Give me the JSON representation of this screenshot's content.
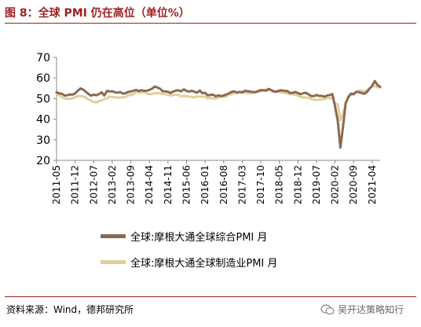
{
  "header": {
    "title": "图 8：全球 PMI 仍在高位（单位%）"
  },
  "footer": {
    "source": "资料来源：Wind，德邦研究所",
    "watermark": "吴开达策略知行"
  },
  "chart_data": {
    "type": "line",
    "title": "",
    "xlabel": "",
    "ylabel": "",
    "ylim": [
      20,
      70
    ],
    "yticks": [
      20,
      30,
      40,
      50,
      60,
      70
    ],
    "x_tick_labels": [
      "2011-05",
      "2011-12",
      "2012-07",
      "2013-02",
      "2013-09",
      "2014-04",
      "2014-11",
      "2015-06",
      "2016-01",
      "2016-08",
      "2017-03",
      "2017-10",
      "2018-05",
      "2018-12",
      "2019-07",
      "2020-02",
      "2020-09",
      "2021-04"
    ],
    "x_start": "2011-05",
    "x_end": "2021-07",
    "grid": false,
    "legend_position": "bottom",
    "colors": {
      "composite": "#8b6a50",
      "manufacturing": "#e0cf9c"
    },
    "series": [
      {
        "name": "全球:摩根大通全球综合PMI 月",
        "color": "#8b6a50",
        "points": [
          [
            "2011-05",
            53.0
          ],
          [
            "2011-06",
            52.6
          ],
          [
            "2011-07",
            52.3
          ],
          [
            "2011-08",
            51.5
          ],
          [
            "2011-09",
            51.6
          ],
          [
            "2011-10",
            52.0
          ],
          [
            "2011-11",
            51.9
          ],
          [
            "2011-12",
            52.5
          ],
          [
            "2012-01",
            53.8
          ],
          [
            "2012-02",
            54.9
          ],
          [
            "2012-03",
            54.4
          ],
          [
            "2012-04",
            53.3
          ],
          [
            "2012-05",
            52.3
          ],
          [
            "2012-06",
            51.4
          ],
          [
            "2012-07",
            51.9
          ],
          [
            "2012-08",
            51.6
          ],
          [
            "2012-09",
            52.2
          ],
          [
            "2012-10",
            53.0
          ],
          [
            "2012-11",
            51.5
          ],
          [
            "2012-12",
            53.7
          ],
          [
            "2013-01",
            53.5
          ],
          [
            "2013-02",
            53.5
          ],
          [
            "2013-03",
            53.1
          ],
          [
            "2013-04",
            52.8
          ],
          [
            "2013-05",
            53.2
          ],
          [
            "2013-06",
            52.4
          ],
          [
            "2013-07",
            52.6
          ],
          [
            "2013-08",
            53.2
          ],
          [
            "2013-09",
            53.4
          ],
          [
            "2013-10",
            53.8
          ],
          [
            "2013-11",
            54.2
          ],
          [
            "2013-12",
            53.7
          ],
          [
            "2014-01",
            54.0
          ],
          [
            "2014-02",
            53.8
          ],
          [
            "2014-03",
            53.8
          ],
          [
            "2014-04",
            54.2
          ],
          [
            "2014-05",
            54.8
          ],
          [
            "2014-06",
            55.8
          ],
          [
            "2014-07",
            55.4
          ],
          [
            "2014-08",
            54.8
          ],
          [
            "2014-09",
            53.6
          ],
          [
            "2014-10",
            53.5
          ],
          [
            "2014-11",
            53.3
          ],
          [
            "2014-12",
            52.7
          ],
          [
            "2015-01",
            53.4
          ],
          [
            "2015-02",
            53.9
          ],
          [
            "2015-03",
            54.0
          ],
          [
            "2015-04",
            53.5
          ],
          [
            "2015-05",
            54.5
          ],
          [
            "2015-06",
            53.7
          ],
          [
            "2015-07",
            53.4
          ],
          [
            "2015-08",
            53.8
          ],
          [
            "2015-09",
            53.3
          ],
          [
            "2015-10",
            52.9
          ],
          [
            "2015-11",
            53.9
          ],
          [
            "2015-12",
            52.6
          ],
          [
            "2016-01",
            52.8
          ],
          [
            "2016-02",
            51.5
          ],
          [
            "2016-03",
            51.8
          ],
          [
            "2016-04",
            51.9
          ],
          [
            "2016-05",
            51.1
          ],
          [
            "2016-06",
            51.6
          ],
          [
            "2016-07",
            51.2
          ],
          [
            "2016-08",
            51.5
          ],
          [
            "2016-09",
            52.0
          ],
          [
            "2016-10",
            52.5
          ],
          [
            "2016-11",
            53.3
          ],
          [
            "2016-12",
            53.5
          ],
          [
            "2017-01",
            52.9
          ],
          [
            "2017-02",
            53.3
          ],
          [
            "2017-03",
            53.0
          ],
          [
            "2017-04",
            53.8
          ],
          [
            "2017-05",
            53.6
          ],
          [
            "2017-06",
            53.4
          ],
          [
            "2017-07",
            53.2
          ],
          [
            "2017-08",
            53.1
          ],
          [
            "2017-09",
            53.7
          ],
          [
            "2017-10",
            54.1
          ],
          [
            "2017-11",
            54.0
          ],
          [
            "2017-12",
            53.8
          ],
          [
            "2018-01",
            54.7
          ],
          [
            "2018-02",
            54.0
          ],
          [
            "2018-03",
            53.4
          ],
          [
            "2018-04",
            53.4
          ],
          [
            "2018-05",
            53.9
          ],
          [
            "2018-06",
            54.0
          ],
          [
            "2018-07",
            53.7
          ],
          [
            "2018-08",
            53.7
          ],
          [
            "2018-09",
            52.7
          ],
          [
            "2018-10",
            52.8
          ],
          [
            "2018-11",
            53.2
          ],
          [
            "2018-12",
            52.7
          ],
          [
            "2019-01",
            52.1
          ],
          [
            "2019-02",
            52.6
          ],
          [
            "2019-03",
            52.8
          ],
          [
            "2019-04",
            52.1
          ],
          [
            "2019-05",
            51.2
          ],
          [
            "2019-06",
            51.2
          ],
          [
            "2019-07",
            51.7
          ],
          [
            "2019-08",
            51.3
          ],
          [
            "2019-09",
            51.3
          ],
          [
            "2019-10",
            50.9
          ],
          [
            "2019-11",
            51.5
          ],
          [
            "2019-12",
            51.7
          ],
          [
            "2020-01",
            52.2
          ],
          [
            "2020-02",
            46.1
          ],
          [
            "2020-03",
            39.4
          ],
          [
            "2020-04",
            26.2
          ],
          [
            "2020-05",
            36.3
          ],
          [
            "2020-06",
            47.7
          ],
          [
            "2020-07",
            50.8
          ],
          [
            "2020-08",
            52.4
          ],
          [
            "2020-09",
            52.1
          ],
          [
            "2020-10",
            53.3
          ],
          [
            "2020-11",
            53.1
          ],
          [
            "2020-12",
            52.7
          ],
          [
            "2021-01",
            52.3
          ],
          [
            "2021-02",
            53.2
          ],
          [
            "2021-03",
            54.8
          ],
          [
            "2021-04",
            56.3
          ],
          [
            "2021-05",
            58.5
          ],
          [
            "2021-06",
            56.6
          ],
          [
            "2021-07",
            55.7
          ]
        ]
      },
      {
        "name": "全球:摩根大通全球制造业PMI 月",
        "color": "#e0cf9c",
        "points": [
          [
            "2011-05",
            52.2
          ],
          [
            "2011-06",
            51.6
          ],
          [
            "2011-07",
            50.6
          ],
          [
            "2011-08",
            50.1
          ],
          [
            "2011-09",
            49.9
          ],
          [
            "2011-10",
            49.8
          ],
          [
            "2011-11",
            50.1
          ],
          [
            "2011-12",
            50.7
          ],
          [
            "2012-01",
            51.2
          ],
          [
            "2012-02",
            51.2
          ],
          [
            "2012-03",
            51.1
          ],
          [
            "2012-04",
            50.5
          ],
          [
            "2012-05",
            49.6
          ],
          [
            "2012-06",
            48.9
          ],
          [
            "2012-07",
            48.4
          ],
          [
            "2012-08",
            48.1
          ],
          [
            "2012-09",
            48.8
          ],
          [
            "2012-10",
            49.1
          ],
          [
            "2012-11",
            49.7
          ],
          [
            "2012-12",
            50.2
          ],
          [
            "2013-01",
            50.9
          ],
          [
            "2013-02",
            50.8
          ],
          [
            "2013-03",
            50.7
          ],
          [
            "2013-04",
            50.4
          ],
          [
            "2013-05",
            50.6
          ],
          [
            "2013-06",
            50.6
          ],
          [
            "2013-07",
            50.8
          ],
          [
            "2013-08",
            51.6
          ],
          [
            "2013-09",
            51.8
          ],
          [
            "2013-10",
            52.1
          ],
          [
            "2013-11",
            53.2
          ],
          [
            "2013-12",
            53.0
          ],
          [
            "2014-01",
            52.9
          ],
          [
            "2014-02",
            53.2
          ],
          [
            "2014-03",
            52.4
          ],
          [
            "2014-04",
            52.2
          ],
          [
            "2014-05",
            52.2
          ],
          [
            "2014-06",
            52.7
          ],
          [
            "2014-07",
            52.6
          ],
          [
            "2014-08",
            52.6
          ],
          [
            "2014-09",
            52.2
          ],
          [
            "2014-10",
            52.2
          ],
          [
            "2014-11",
            51.8
          ],
          [
            "2014-12",
            51.5
          ],
          [
            "2015-01",
            51.7
          ],
          [
            "2015-02",
            51.9
          ],
          [
            "2015-03",
            51.8
          ],
          [
            "2015-04",
            51.0
          ],
          [
            "2015-05",
            51.3
          ],
          [
            "2015-06",
            51.1
          ],
          [
            "2015-07",
            51.0
          ],
          [
            "2015-08",
            50.7
          ],
          [
            "2015-09",
            50.6
          ],
          [
            "2015-10",
            51.0
          ],
          [
            "2015-11",
            50.9
          ],
          [
            "2015-12",
            50.9
          ],
          [
            "2016-01",
            50.9
          ],
          [
            "2016-02",
            50.0
          ],
          [
            "2016-03",
            50.5
          ],
          [
            "2016-04",
            50.1
          ],
          [
            "2016-05",
            50.0
          ],
          [
            "2016-06",
            50.4
          ],
          [
            "2016-07",
            51.0
          ],
          [
            "2016-08",
            50.8
          ],
          [
            "2016-09",
            51.0
          ],
          [
            "2016-10",
            52.0
          ],
          [
            "2016-11",
            52.1
          ],
          [
            "2016-12",
            52.7
          ],
          [
            "2017-01",
            52.7
          ],
          [
            "2017-02",
            52.9
          ],
          [
            "2017-03",
            53.0
          ],
          [
            "2017-04",
            52.8
          ],
          [
            "2017-05",
            52.6
          ],
          [
            "2017-06",
            52.6
          ],
          [
            "2017-07",
            52.7
          ],
          [
            "2017-08",
            53.1
          ],
          [
            "2017-09",
            53.2
          ],
          [
            "2017-10",
            53.5
          ],
          [
            "2017-11",
            54.0
          ],
          [
            "2017-12",
            54.5
          ],
          [
            "2018-01",
            54.4
          ],
          [
            "2018-02",
            54.2
          ],
          [
            "2018-03",
            53.4
          ],
          [
            "2018-04",
            53.5
          ],
          [
            "2018-05",
            53.1
          ],
          [
            "2018-06",
            53.0
          ],
          [
            "2018-07",
            52.7
          ],
          [
            "2018-08",
            52.5
          ],
          [
            "2018-09",
            52.2
          ],
          [
            "2018-10",
            52.0
          ],
          [
            "2018-11",
            51.9
          ],
          [
            "2018-12",
            51.4
          ],
          [
            "2019-01",
            50.8
          ],
          [
            "2019-02",
            50.6
          ],
          [
            "2019-03",
            50.5
          ],
          [
            "2019-04",
            50.4
          ],
          [
            "2019-05",
            49.8
          ],
          [
            "2019-06",
            49.4
          ],
          [
            "2019-07",
            49.3
          ],
          [
            "2019-08",
            49.5
          ],
          [
            "2019-09",
            49.7
          ],
          [
            "2019-10",
            49.8
          ],
          [
            "2019-11",
            50.3
          ],
          [
            "2019-12",
            50.1
          ],
          [
            "2020-01",
            50.4
          ],
          [
            "2020-02",
            47.2
          ],
          [
            "2020-03",
            47.3
          ],
          [
            "2020-04",
            39.5
          ],
          [
            "2020-05",
            42.4
          ],
          [
            "2020-06",
            47.8
          ],
          [
            "2020-07",
            50.6
          ],
          [
            "2020-08",
            51.8
          ],
          [
            "2020-09",
            52.3
          ],
          [
            "2020-10",
            53.0
          ],
          [
            "2020-11",
            53.8
          ],
          [
            "2020-12",
            53.8
          ],
          [
            "2021-01",
            53.5
          ],
          [
            "2021-02",
            53.9
          ],
          [
            "2021-03",
            55.0
          ],
          [
            "2021-04",
            55.8
          ],
          [
            "2021-05",
            56.0
          ],
          [
            "2021-06",
            55.5
          ],
          [
            "2021-07",
            55.4
          ]
        ]
      }
    ]
  }
}
